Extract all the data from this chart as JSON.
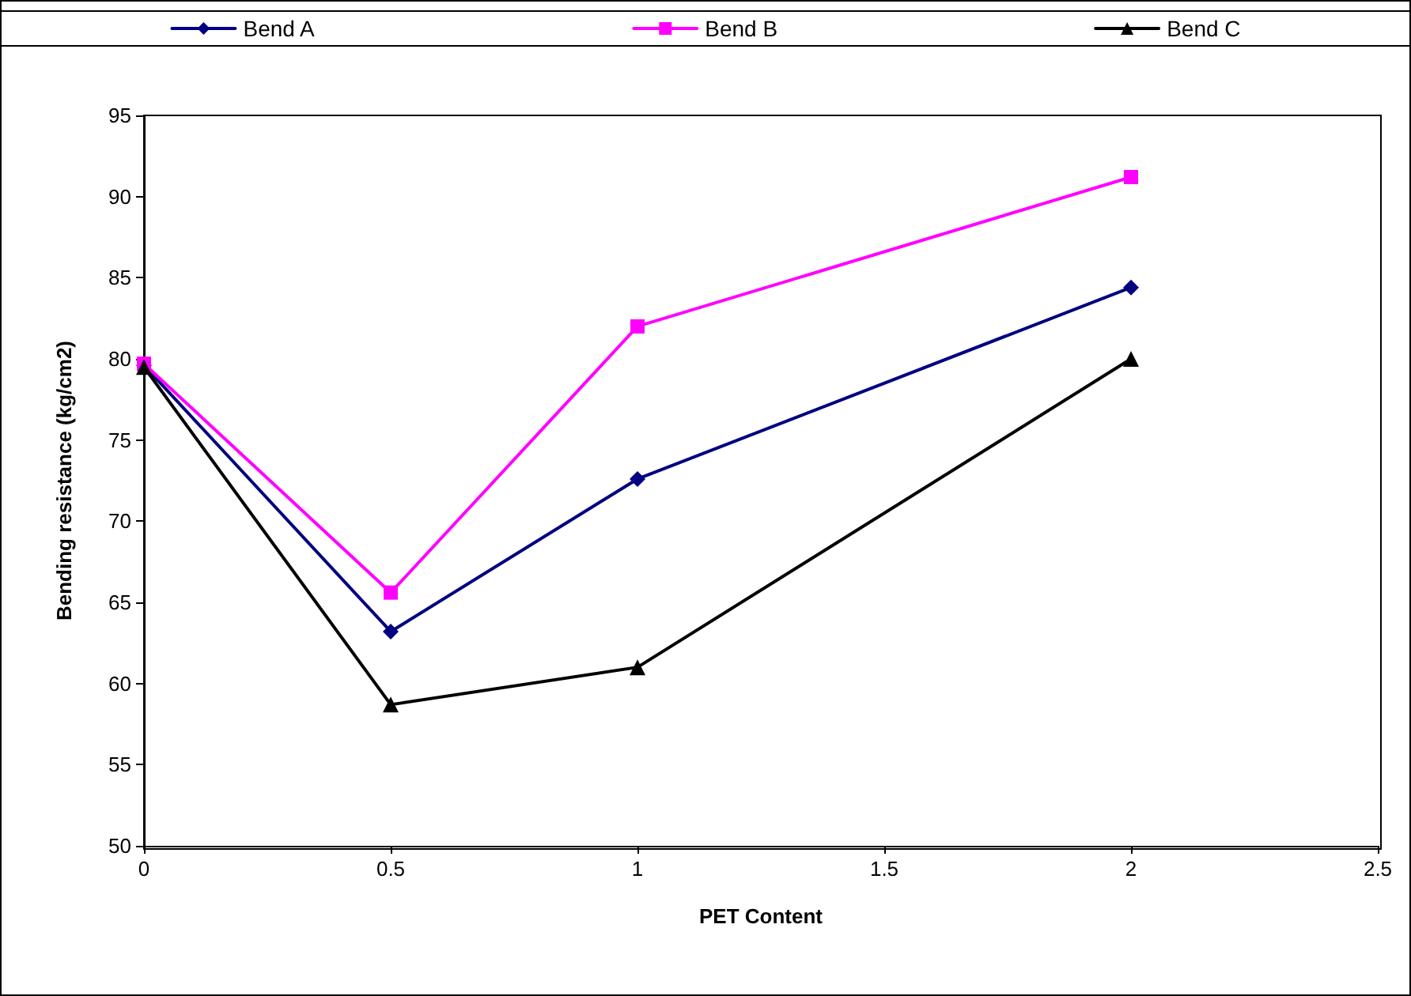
{
  "chart_data": {
    "type": "line",
    "xlabel": "PET Content",
    "ylabel": "Bending resistance (kg/cm2)",
    "x": [
      0,
      0.5,
      1,
      2
    ],
    "series": [
      {
        "name": "Bend A",
        "color": "#000080",
        "marker": "diamond",
        "values": [
          79.6,
          63.2,
          72.6,
          84.4
        ]
      },
      {
        "name": "Bend B",
        "color": "#ff00ff",
        "marker": "square",
        "values": [
          79.7,
          65.6,
          82.0,
          91.2
        ]
      },
      {
        "name": "Bend C",
        "color": "#000000",
        "marker": "triangle",
        "values": [
          79.5,
          58.7,
          61.0,
          80.0
        ]
      }
    ],
    "xlim": [
      0,
      2.5
    ],
    "xticks": [
      0,
      0.5,
      1,
      1.5,
      2,
      2.5
    ],
    "ylim": [
      50,
      95
    ],
    "yticks": [
      50,
      55,
      60,
      65,
      70,
      75,
      80,
      85,
      90,
      95
    ],
    "grid": false,
    "legend": "top",
    "line_style": "solid"
  }
}
